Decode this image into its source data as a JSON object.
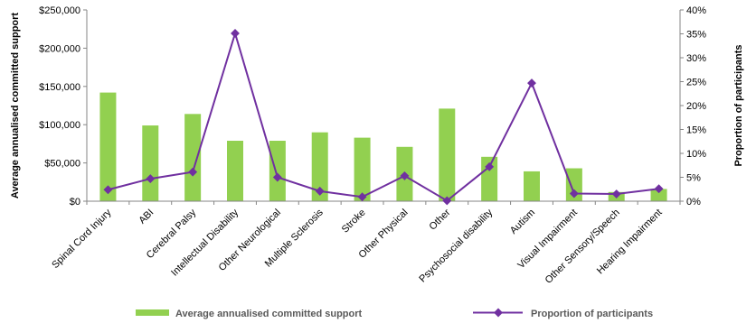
{
  "chart_data": {
    "type": "bar",
    "categories": [
      "Spinal Cord Injury",
      "ABI",
      "Cerebral Palsy",
      "Intellectual Disability",
      "Other Neurological",
      "Multiple Sclerosis",
      "Stroke",
      "Other Physical",
      "Other",
      "Psychosocial disability",
      "Autism",
      "Visual Impairment",
      "Other Sensory/Speech",
      "Hearing Impairment"
    ],
    "series": [
      {
        "name": "Average annualised committed support",
        "type": "bar",
        "axis": "left",
        "color": "#92D050",
        "values": [
          142000,
          99000,
          114000,
          79000,
          79000,
          90000,
          83000,
          71000,
          121000,
          58000,
          39000,
          43000,
          12000,
          16000
        ]
      },
      {
        "name": "Proportion of participants",
        "type": "line",
        "axis": "right",
        "color": "#7030A0",
        "values": [
          2.4,
          4.7,
          6.1,
          35.1,
          5.0,
          2.1,
          0.9,
          5.3,
          0.1,
          7.2,
          24.7,
          1.6,
          1.5,
          2.6
        ]
      }
    ],
    "ylabel": "Average annualised committed support",
    "y2label": "Proportion of participants",
    "ylim": [
      0,
      250000
    ],
    "y2lim": [
      0,
      40
    ],
    "yticks": [
      "$0",
      "$50,000",
      "$100,000",
      "$150,000",
      "$200,000",
      "$250,000"
    ],
    "y2ticks": [
      "0%",
      "5%",
      "10%",
      "15%",
      "20%",
      "25%",
      "30%",
      "35%",
      "40%"
    ],
    "grid": false,
    "legend": "bottom"
  }
}
